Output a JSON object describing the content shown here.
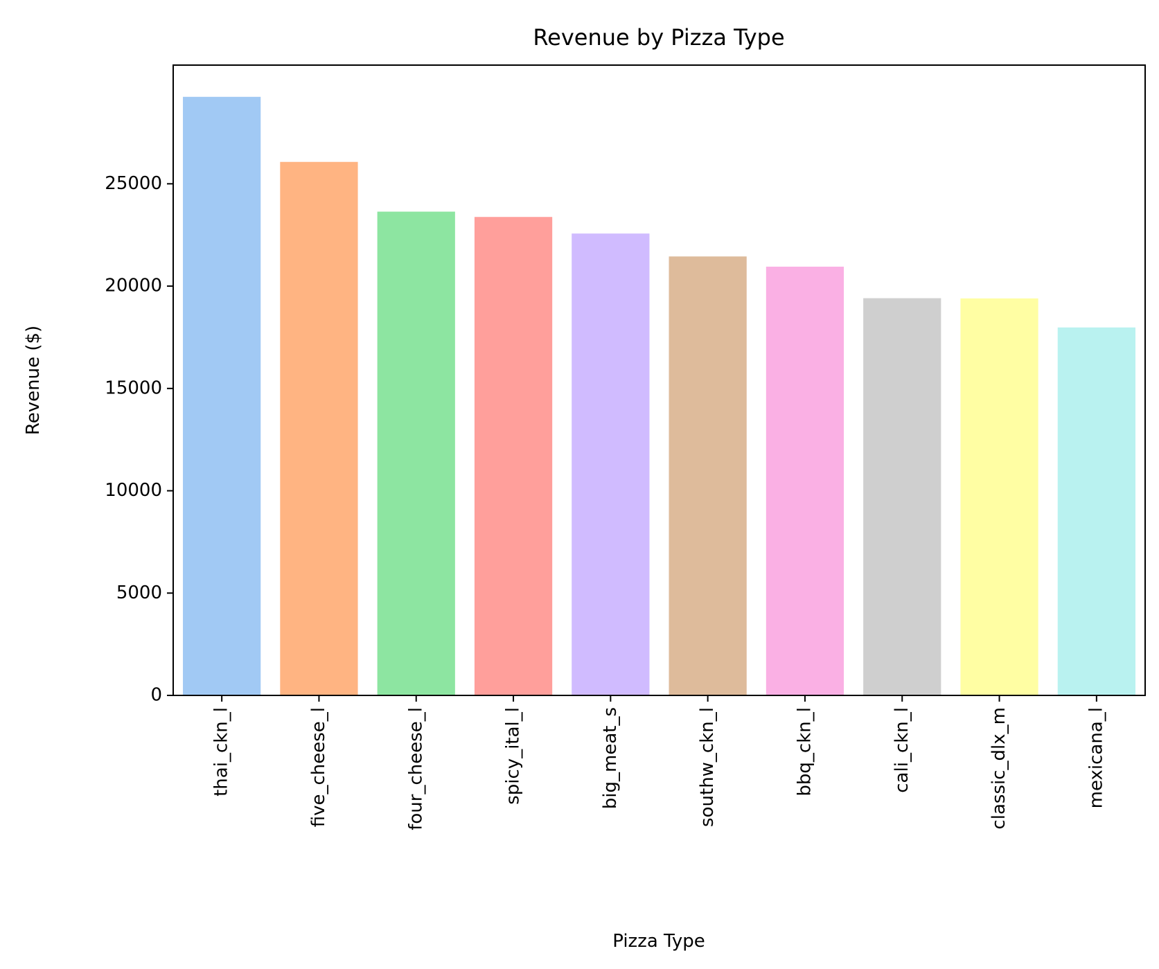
{
  "chart_data": {
    "type": "bar",
    "title": "Revenue by Pizza Type",
    "xlabel": "Pizza Type",
    "ylabel": "Revenue ($)",
    "categories": [
      "thai_ckn_l",
      "five_cheese_l",
      "four_cheese_l",
      "spicy_ital_l",
      "big_meat_s",
      "southw_ckn_l",
      "bbq_ckn_l",
      "cali_ckn_l",
      "classic_dlx_m",
      "mexicana_l"
    ],
    "values": [
      29250,
      26070,
      23640,
      23380,
      22570,
      21450,
      20950,
      19410,
      19400,
      17980
    ],
    "colors": [
      "#a1c9f4",
      "#ffb482",
      "#8de5a1",
      "#ff9f9b",
      "#d0bbff",
      "#debb9b",
      "#fab0e4",
      "#cfcfcf",
      "#fffea3",
      "#b9f2f0"
    ],
    "ylim": [
      0,
      30800
    ],
    "yticks": [
      0,
      5000,
      10000,
      15000,
      20000,
      25000
    ],
    "grid": false,
    "legend": "none"
  }
}
